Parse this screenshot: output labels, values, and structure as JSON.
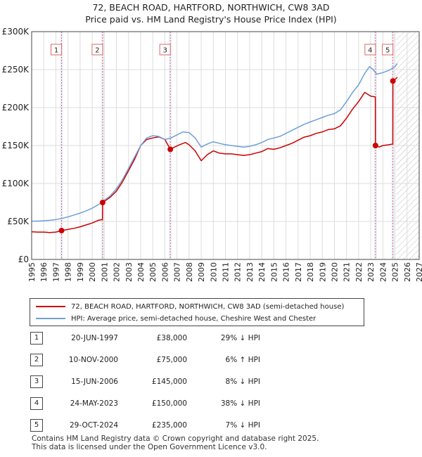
{
  "title": "72, BEACH ROAD, HARTFORD, NORTHWICH, CW8 3AD",
  "subtitle": "Price paid vs. HM Land Registry's House Price Index (HPI)",
  "colors": {
    "property": "#cc0000",
    "hpi": "#6f9fd8",
    "shade": "#ebf0fa",
    "marker_line": "#e06666"
  },
  "chart_data": {
    "type": "line",
    "xlim": [
      1995,
      2027
    ],
    "ylim": [
      0,
      300000
    ],
    "x_ticks": [
      "1995",
      "1996",
      "1997",
      "1998",
      "1999",
      "2000",
      "2001",
      "2002",
      "2003",
      "2004",
      "2005",
      "2006",
      "2007",
      "2008",
      "2009",
      "2010",
      "2011",
      "2012",
      "2013",
      "2014",
      "2015",
      "2016",
      "2017",
      "2018",
      "2019",
      "2020",
      "2021",
      "2022",
      "2023",
      "2024",
      "2025",
      "2026",
      "2027"
    ],
    "y_ticks": [
      {
        "value": 0,
        "label": "£0"
      },
      {
        "value": 50000,
        "label": "£50K"
      },
      {
        "value": 100000,
        "label": "£100K"
      },
      {
        "value": 150000,
        "label": "£150K"
      },
      {
        "value": 200000,
        "label": "£200K"
      },
      {
        "value": 250000,
        "label": "£250K"
      },
      {
        "value": 300000,
        "label": "£300K"
      }
    ],
    "grid": true,
    "future_hatch_from": 2025.1,
    "series": [
      {
        "name": "72, BEACH ROAD, HARTFORD, NORTHWICH, CW8 3AD (semi-detached house)",
        "color": "#cc0000",
        "points": [
          [
            1995.0,
            36500
          ],
          [
            1995.5,
            36000
          ],
          [
            1996.0,
            36000
          ],
          [
            1996.5,
            35500
          ],
          [
            1997.0,
            36000
          ],
          [
            1997.47,
            38000
          ],
          [
            1998.0,
            39500
          ],
          [
            1998.5,
            41000
          ],
          [
            1999.0,
            43000
          ],
          [
            1999.5,
            45500
          ],
          [
            2000.0,
            48000
          ],
          [
            2000.5,
            51500
          ],
          [
            2000.85,
            52500
          ],
          [
            2000.86,
            75000
          ],
          [
            2001.5,
            82000
          ],
          [
            2002.0,
            90000
          ],
          [
            2002.5,
            102000
          ],
          [
            2003.0,
            117000
          ],
          [
            2003.5,
            132000
          ],
          [
            2004.0,
            150000
          ],
          [
            2004.5,
            158000
          ],
          [
            2005.0,
            160000
          ],
          [
            2005.5,
            161500
          ],
          [
            2006.0,
            158000
          ],
          [
            2006.45,
            145000
          ],
          [
            2006.8,
            148000
          ],
          [
            2007.2,
            151000
          ],
          [
            2007.7,
            154000
          ],
          [
            2008.0,
            151000
          ],
          [
            2008.5,
            143000
          ],
          [
            2009.0,
            130000
          ],
          [
            2009.5,
            138000
          ],
          [
            2010.0,
            143000
          ],
          [
            2010.5,
            140000
          ],
          [
            2011.0,
            139000
          ],
          [
            2011.5,
            139000
          ],
          [
            2012.0,
            138000
          ],
          [
            2012.5,
            137000
          ],
          [
            2013.0,
            138000
          ],
          [
            2013.5,
            140000
          ],
          [
            2014.0,
            142000
          ],
          [
            2014.5,
            146000
          ],
          [
            2015.0,
            145000
          ],
          [
            2015.5,
            147000
          ],
          [
            2016.0,
            150000
          ],
          [
            2016.5,
            153000
          ],
          [
            2017.0,
            157000
          ],
          [
            2017.5,
            161000
          ],
          [
            2018.0,
            163000
          ],
          [
            2018.5,
            166000
          ],
          [
            2019.0,
            168000
          ],
          [
            2019.5,
            171000
          ],
          [
            2020.0,
            172000
          ],
          [
            2020.5,
            176000
          ],
          [
            2021.0,
            186000
          ],
          [
            2021.5,
            198000
          ],
          [
            2022.0,
            208000
          ],
          [
            2022.5,
            220000
          ],
          [
            2023.0,
            215000
          ],
          [
            2023.38,
            214000
          ],
          [
            2023.39,
            150000
          ],
          [
            2023.7,
            148000
          ],
          [
            2024.0,
            150000
          ],
          [
            2024.5,
            151000
          ],
          [
            2024.82,
            152000
          ],
          [
            2024.83,
            235000
          ],
          [
            2025.0,
            237000
          ],
          [
            2025.2,
            240000
          ]
        ]
      },
      {
        "name": "HPI: Average price, semi-detached house, Cheshire West and Chester",
        "color": "#6f9fd8",
        "points": [
          [
            1995.0,
            50500
          ],
          [
            1995.5,
            50500
          ],
          [
            1996.0,
            51000
          ],
          [
            1996.5,
            51500
          ],
          [
            1997.0,
            52500
          ],
          [
            1997.5,
            54000
          ],
          [
            1998.0,
            56000
          ],
          [
            1998.5,
            58500
          ],
          [
            1999.0,
            61000
          ],
          [
            1999.5,
            64000
          ],
          [
            2000.0,
            67500
          ],
          [
            2000.5,
            72000
          ],
          [
            2001.0,
            78000
          ],
          [
            2001.5,
            84000
          ],
          [
            2002.0,
            93000
          ],
          [
            2002.5,
            105000
          ],
          [
            2003.0,
            120000
          ],
          [
            2003.5,
            135000
          ],
          [
            2004.0,
            150000
          ],
          [
            2004.5,
            160000
          ],
          [
            2005.0,
            163000
          ],
          [
            2005.5,
            162000
          ],
          [
            2006.0,
            158000
          ],
          [
            2006.5,
            160000
          ],
          [
            2007.0,
            164000
          ],
          [
            2007.5,
            168000
          ],
          [
            2008.0,
            167000
          ],
          [
            2008.5,
            160000
          ],
          [
            2009.0,
            148000
          ],
          [
            2009.5,
            152000
          ],
          [
            2010.0,
            155000
          ],
          [
            2010.5,
            153000
          ],
          [
            2011.0,
            151000
          ],
          [
            2011.5,
            150000
          ],
          [
            2012.0,
            149000
          ],
          [
            2012.5,
            148000
          ],
          [
            2013.0,
            149000
          ],
          [
            2013.5,
            151000
          ],
          [
            2014.0,
            154000
          ],
          [
            2014.5,
            158000
          ],
          [
            2015.0,
            160000
          ],
          [
            2015.5,
            162000
          ],
          [
            2016.0,
            166000
          ],
          [
            2016.5,
            170000
          ],
          [
            2017.0,
            174000
          ],
          [
            2017.5,
            178000
          ],
          [
            2018.0,
            181000
          ],
          [
            2018.5,
            184000
          ],
          [
            2019.0,
            187000
          ],
          [
            2019.5,
            190000
          ],
          [
            2020.0,
            192000
          ],
          [
            2020.5,
            197000
          ],
          [
            2021.0,
            208000
          ],
          [
            2021.5,
            220000
          ],
          [
            2022.0,
            230000
          ],
          [
            2022.5,
            245000
          ],
          [
            2022.9,
            254000
          ],
          [
            2023.2,
            250000
          ],
          [
            2023.5,
            244000
          ],
          [
            2024.0,
            246000
          ],
          [
            2024.5,
            249000
          ],
          [
            2025.0,
            254000
          ],
          [
            2025.2,
            258000
          ]
        ]
      }
    ],
    "sales": [
      {
        "num": "1",
        "x": 1997.47,
        "price": 38000
      },
      {
        "num": "2",
        "x": 2000.86,
        "price": 75000
      },
      {
        "num": "3",
        "x": 2006.45,
        "price": 145000
      },
      {
        "num": "4",
        "x": 2023.39,
        "price": 150000
      },
      {
        "num": "5",
        "x": 2024.83,
        "price": 235000
      }
    ]
  },
  "legend": [
    {
      "label": "72, BEACH ROAD, HARTFORD, NORTHWICH, CW8 3AD (semi-detached house)",
      "color": "#cc0000"
    },
    {
      "label": "HPI: Average price, semi-detached house, Cheshire West and Chester",
      "color": "#6f9fd8"
    }
  ],
  "table": [
    {
      "num": "1",
      "date": "20-JUN-1997",
      "price": "£38,000",
      "hpi": "29% ↓ HPI"
    },
    {
      "num": "2",
      "date": "10-NOV-2000",
      "price": "£75,000",
      "hpi": "6% ↑ HPI"
    },
    {
      "num": "3",
      "date": "15-JUN-2006",
      "price": "£145,000",
      "hpi": "8% ↓ HPI"
    },
    {
      "num": "4",
      "date": "24-MAY-2023",
      "price": "£150,000",
      "hpi": "38% ↓ HPI"
    },
    {
      "num": "5",
      "date": "29-OCT-2024",
      "price": "£235,000",
      "hpi": "7% ↓ HPI"
    }
  ],
  "footer": {
    "line1": "Contains HM Land Registry data © Crown copyright and database right 2025.",
    "line2": "This data is licensed under the Open Government Licence v3.0."
  }
}
